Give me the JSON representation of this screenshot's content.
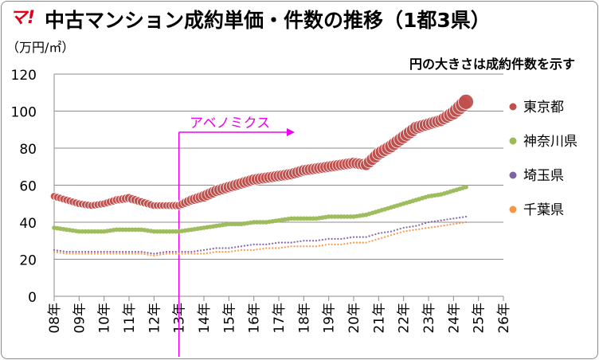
{
  "logo": {
    "text": "マ!",
    "color": "#e0001b"
  },
  "chart_data": {
    "type": "scatter",
    "title": "中古マンション成約単価・件数の推移（1都3県）",
    "ylabel": "（万円/㎡）",
    "note": "円の大きさは成約件数を示す",
    "ylim": [
      0,
      120
    ],
    "y_ticks": [
      "0",
      "20",
      "40",
      "60",
      "80",
      "100",
      "120"
    ],
    "x_tick_labels": [
      "08年",
      "09年",
      "10年",
      "11年",
      "12年",
      "13年",
      "14年",
      "15年",
      "16年",
      "17年",
      "18年",
      "19年",
      "20年",
      "21年",
      "22年",
      "23年",
      "24年",
      "25年",
      "26年"
    ],
    "grid": true,
    "legend_position": "right",
    "annotation": {
      "text": "アベノミクス",
      "x": 2013.0,
      "color": "#ee00ee"
    },
    "series": [
      {
        "name": "東京都",
        "color": "#c0504d",
        "x": [
          2008.0,
          2008.5,
          2009.0,
          2009.5,
          2010.0,
          2010.5,
          2011.0,
          2011.5,
          2012.0,
          2012.5,
          2013.0,
          2013.5,
          2014.0,
          2014.5,
          2015.0,
          2015.5,
          2016.0,
          2016.5,
          2017.0,
          2017.5,
          2018.0,
          2018.5,
          2019.0,
          2019.5,
          2020.0,
          2020.5,
          2021.0,
          2021.5,
          2022.0,
          2022.5,
          2023.0,
          2023.5,
          2024.0,
          2024.5
        ],
        "y": [
          54,
          52,
          50,
          49,
          50,
          52,
          53,
          51,
          49,
          49,
          49,
          52,
          54,
          57,
          59,
          61,
          63,
          64,
          65,
          66,
          68,
          69,
          70,
          71,
          72,
          71,
          77,
          81,
          86,
          91,
          93,
          95,
          99,
          105
        ],
        "size": [
          0.5,
          0.5,
          0.5,
          0.5,
          0.5,
          0.55,
          0.6,
          0.55,
          0.5,
          0.5,
          0.55,
          0.65,
          0.75,
          0.75,
          0.75,
          0.75,
          0.75,
          0.75,
          0.75,
          0.75,
          0.75,
          0.75,
          0.75,
          0.75,
          0.75,
          0.75,
          0.85,
          0.85,
          0.85,
          0.85,
          0.8,
          0.8,
          0.9,
          1.0
        ]
      },
      {
        "name": "神奈川県",
        "color": "#9bbb59",
        "x": [
          2008.0,
          2008.5,
          2009.0,
          2009.5,
          2010.0,
          2010.5,
          2011.0,
          2011.5,
          2012.0,
          2012.5,
          2013.0,
          2013.5,
          2014.0,
          2014.5,
          2015.0,
          2015.5,
          2016.0,
          2016.5,
          2017.0,
          2017.5,
          2018.0,
          2018.5,
          2019.0,
          2019.5,
          2020.0,
          2020.5,
          2021.0,
          2021.5,
          2022.0,
          2022.5,
          2023.0,
          2023.5,
          2024.0,
          2024.5
        ],
        "y": [
          37,
          36,
          35,
          35,
          35,
          36,
          36,
          36,
          35,
          35,
          35,
          36,
          37,
          38,
          39,
          39,
          40,
          40,
          41,
          42,
          42,
          42,
          43,
          43,
          43,
          44,
          46,
          48,
          50,
          52,
          54,
          55,
          57,
          59
        ],
        "size": [
          0.3,
          0.3,
          0.3,
          0.3,
          0.3,
          0.3,
          0.3,
          0.3,
          0.3,
          0.3,
          0.3,
          0.3,
          0.3,
          0.3,
          0.3,
          0.3,
          0.3,
          0.3,
          0.3,
          0.3,
          0.3,
          0.3,
          0.3,
          0.3,
          0.3,
          0.3,
          0.3,
          0.3,
          0.3,
          0.3,
          0.3,
          0.3,
          0.3,
          0.3
        ]
      },
      {
        "name": "埼玉県",
        "color": "#8064a2",
        "x": [
          2008.0,
          2008.5,
          2009.0,
          2009.5,
          2010.0,
          2010.5,
          2011.0,
          2011.5,
          2012.0,
          2012.5,
          2013.0,
          2013.5,
          2014.0,
          2014.5,
          2015.0,
          2015.5,
          2016.0,
          2016.5,
          2017.0,
          2017.5,
          2018.0,
          2018.5,
          2019.0,
          2019.5,
          2020.0,
          2020.5,
          2021.0,
          2021.5,
          2022.0,
          2022.5,
          2023.0,
          2023.5,
          2024.0,
          2024.5
        ],
        "y": [
          25,
          24,
          24,
          24,
          24,
          24,
          24,
          24,
          23,
          24,
          24,
          24,
          25,
          26,
          26,
          27,
          28,
          28,
          29,
          29,
          30,
          30,
          31,
          31,
          32,
          32,
          34,
          35,
          37,
          38,
          40,
          41,
          42,
          43
        ],
        "size": [
          0.12,
          0.12,
          0.12,
          0.12,
          0.12,
          0.12,
          0.12,
          0.12,
          0.12,
          0.12,
          0.12,
          0.12,
          0.12,
          0.12,
          0.12,
          0.12,
          0.12,
          0.12,
          0.12,
          0.12,
          0.12,
          0.12,
          0.12,
          0.12,
          0.12,
          0.12,
          0.12,
          0.12,
          0.12,
          0.12,
          0.12,
          0.12,
          0.12,
          0.12
        ]
      },
      {
        "name": "千葉県",
        "color": "#f79646",
        "x": [
          2008.0,
          2008.5,
          2009.0,
          2009.5,
          2010.0,
          2010.5,
          2011.0,
          2011.5,
          2012.0,
          2012.5,
          2013.0,
          2013.5,
          2014.0,
          2014.5,
          2015.0,
          2015.5,
          2016.0,
          2016.5,
          2017.0,
          2017.5,
          2018.0,
          2018.5,
          2019.0,
          2019.5,
          2020.0,
          2020.5,
          2021.0,
          2021.5,
          2022.0,
          2022.5,
          2023.0,
          2023.5,
          2024.0,
          2024.5
        ],
        "y": [
          24,
          23,
          23,
          23,
          23,
          23,
          23,
          23,
          22,
          23,
          23,
          23,
          23,
          24,
          24,
          25,
          25,
          26,
          26,
          27,
          27,
          27,
          28,
          28,
          29,
          29,
          31,
          33,
          35,
          36,
          37,
          38,
          39,
          40
        ],
        "size": [
          0.12,
          0.12,
          0.12,
          0.12,
          0.12,
          0.12,
          0.12,
          0.12,
          0.12,
          0.12,
          0.12,
          0.12,
          0.12,
          0.12,
          0.12,
          0.12,
          0.12,
          0.12,
          0.12,
          0.12,
          0.12,
          0.12,
          0.12,
          0.12,
          0.12,
          0.12,
          0.12,
          0.12,
          0.12,
          0.12,
          0.12,
          0.12,
          0.12,
          0.12
        ]
      }
    ]
  }
}
